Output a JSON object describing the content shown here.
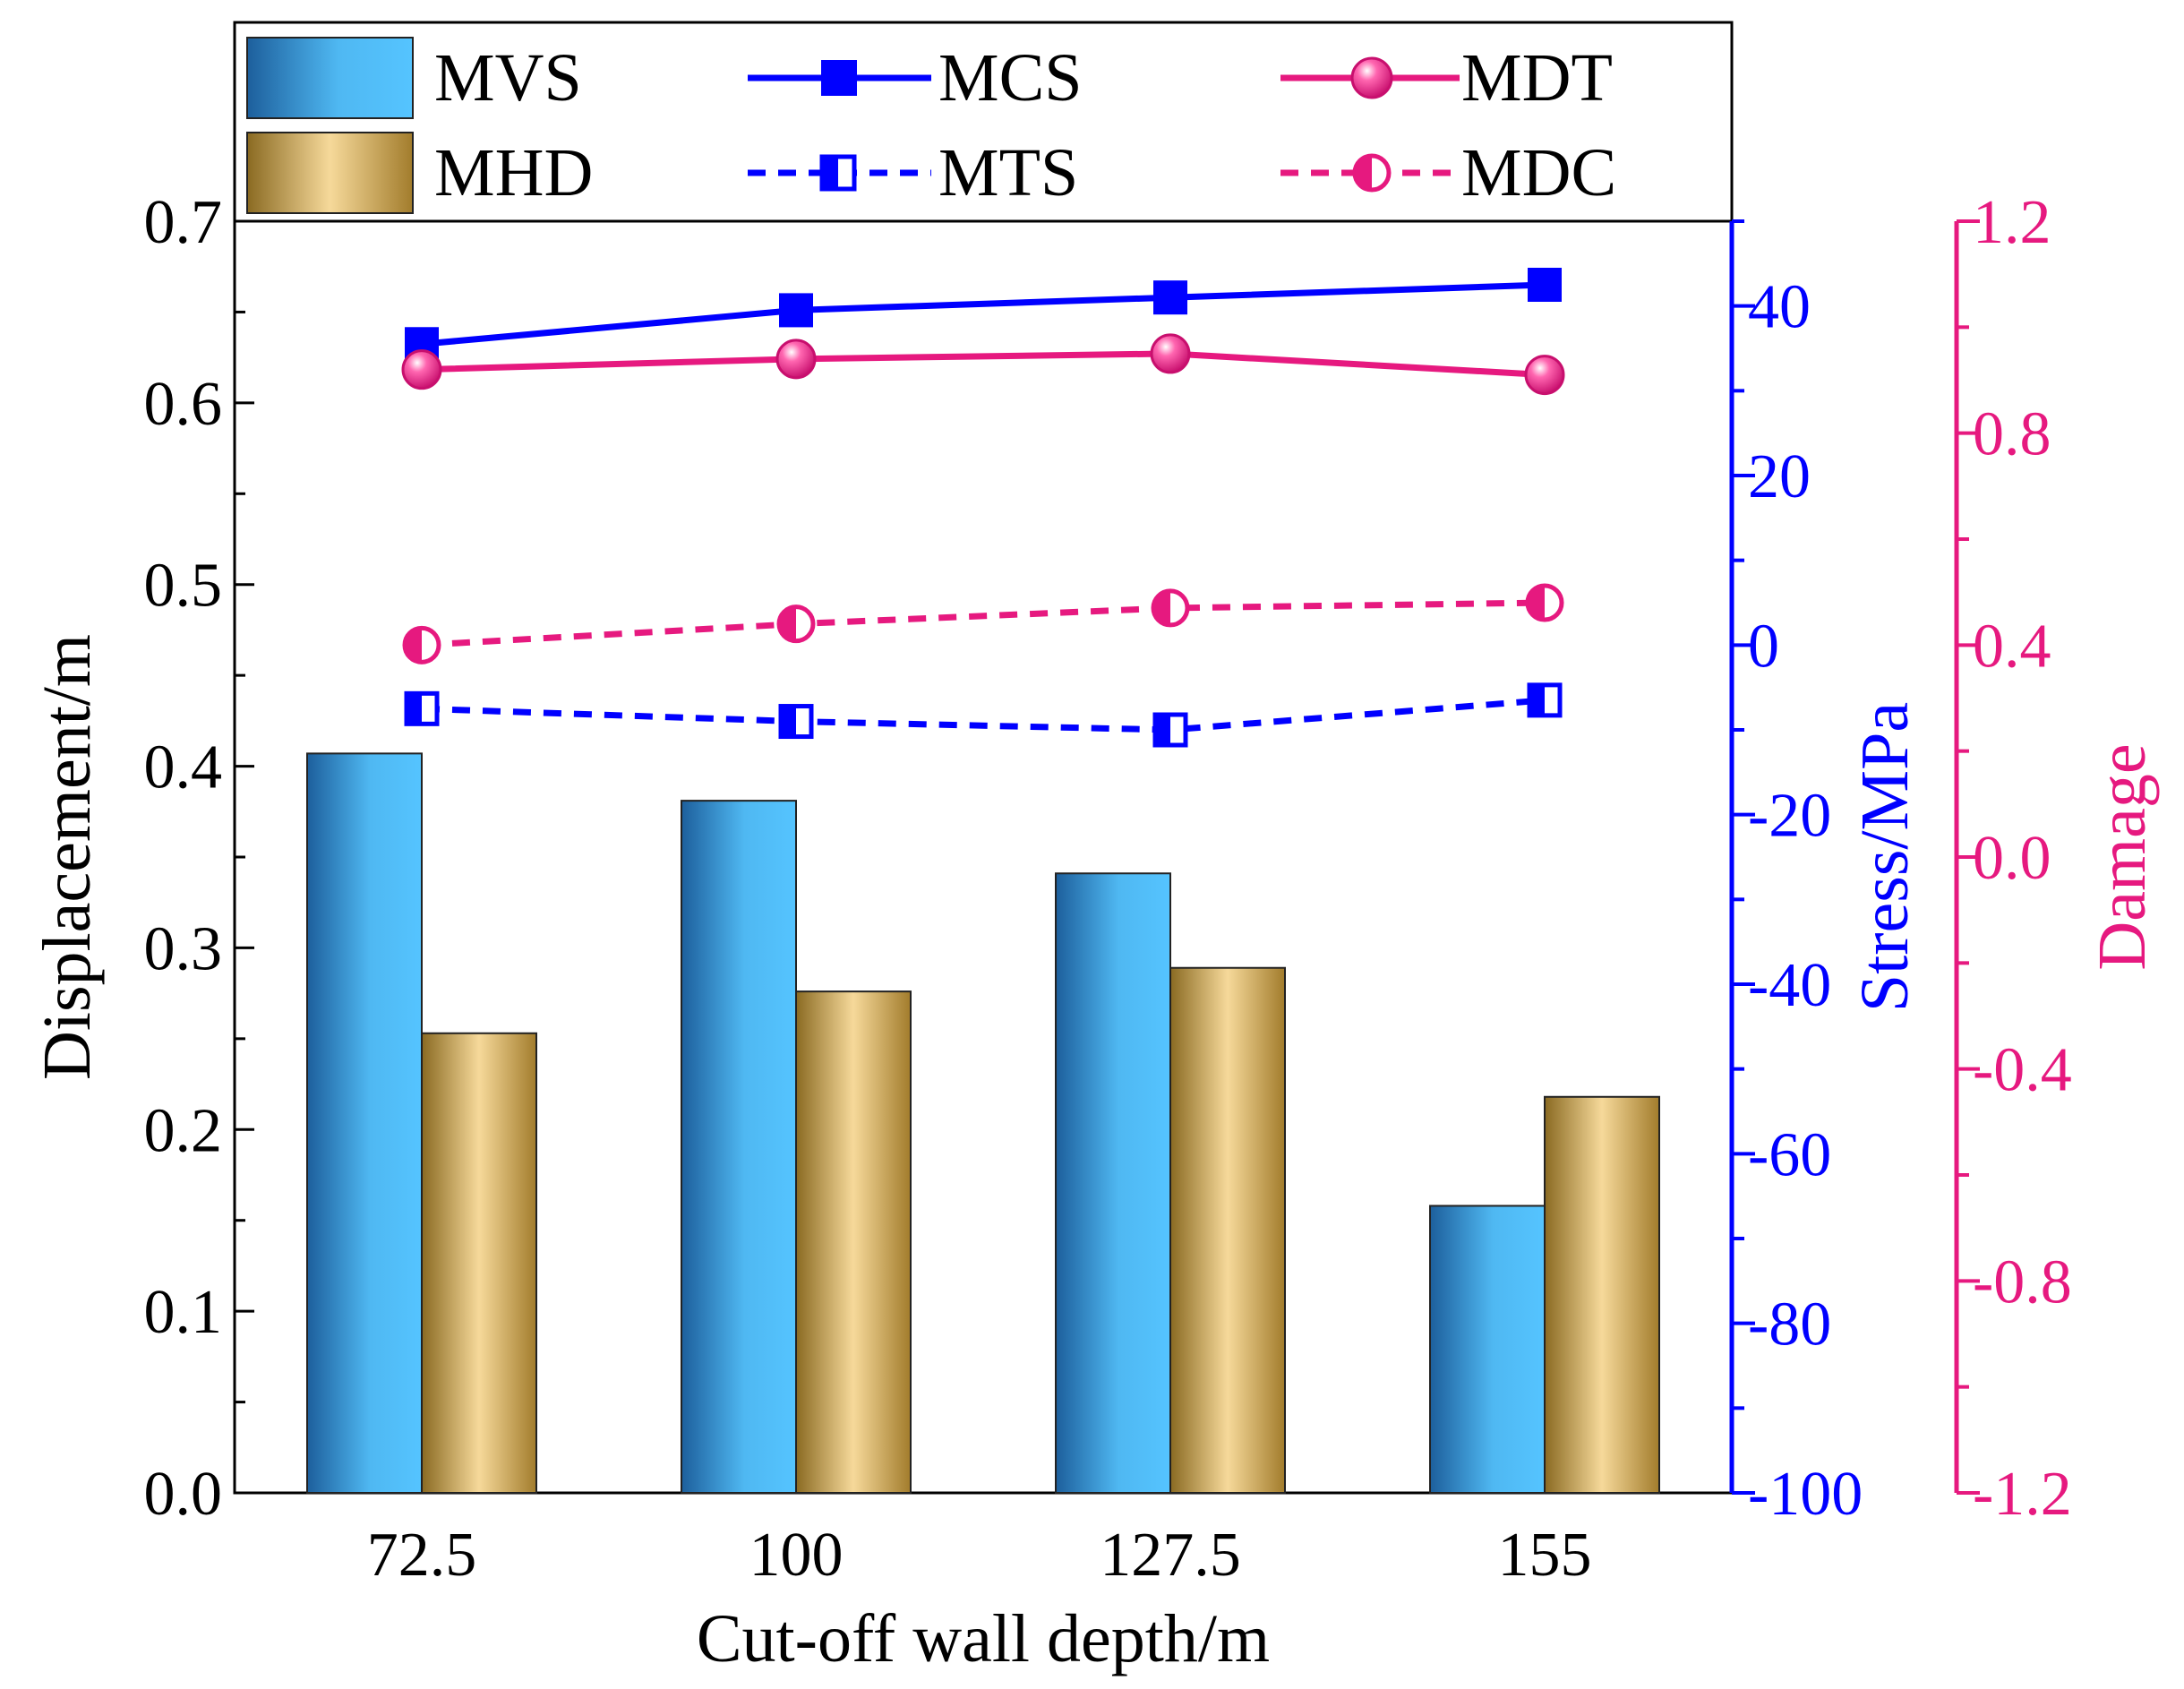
{
  "chart_data": {
    "type": "bar",
    "title": "",
    "categories": [
      "72.5",
      "100",
      "127.5",
      "155"
    ],
    "xlabel": "Cut-off wall depth/m",
    "axes": {
      "left": {
        "label": "Displacement/m",
        "ylim": [
          0.0,
          0.7
        ],
        "ticks": [
          "0.0",
          "0.1",
          "0.2",
          "0.3",
          "0.4",
          "0.5",
          "0.6",
          "0.7"
        ],
        "color": "#000000"
      },
      "stress": {
        "label": "Stress/MPa",
        "ylim": [
          -100,
          50
        ],
        "ticks": [
          "-100",
          "-80",
          "-60",
          "-40",
          "-20",
          "0",
          "20",
          "40"
        ],
        "tick_values": [
          -100,
          -80,
          -60,
          -40,
          -20,
          0,
          20,
          40
        ],
        "color": "#0000ff"
      },
      "damage": {
        "label": "Damage",
        "ylim": [
          -1.2,
          1.2
        ],
        "ticks": [
          "-1.2",
          "-0.8",
          "-0.4",
          "0.0",
          "0.4",
          "0.8",
          "1.2"
        ],
        "tick_values": [
          -1.2,
          -0.8,
          -0.4,
          0.0,
          0.4,
          0.8,
          1.2
        ],
        "color": "#e6197f"
      }
    },
    "series": [
      {
        "name": "MVS",
        "kind": "bar",
        "axis": "left",
        "values": [
          0.407,
          0.381,
          0.341,
          0.158
        ]
      },
      {
        "name": "MHD",
        "kind": "bar",
        "axis": "left",
        "values": [
          0.253,
          0.276,
          0.289,
          0.218
        ]
      },
      {
        "name": "MCS",
        "kind": "line",
        "axis": "stress",
        "style": "solid",
        "marker": "square-filled",
        "color": "#0000ff",
        "values": [
          35.5,
          39.5,
          41.0,
          42.5
        ]
      },
      {
        "name": "MTS",
        "kind": "line",
        "axis": "stress",
        "style": "dashed",
        "marker": "square-half",
        "color": "#0000ff",
        "values": [
          -7.5,
          -9.0,
          -10.0,
          -6.5
        ]
      },
      {
        "name": "MDT",
        "kind": "line",
        "axis": "damage",
        "style": "solid",
        "marker": "circle-filled",
        "color": "#e6197f",
        "values": [
          0.92,
          0.94,
          0.95,
          0.91
        ]
      },
      {
        "name": "MDC",
        "kind": "line",
        "axis": "damage",
        "style": "dashed",
        "marker": "circle-half",
        "color": "#e6197f",
        "values": [
          0.4,
          0.44,
          0.47,
          0.48
        ]
      }
    ],
    "legend": {
      "position": "top",
      "entries": [
        "MVS",
        "MCS",
        "MDT",
        "MHD",
        "MTS",
        "MDC"
      ]
    }
  }
}
